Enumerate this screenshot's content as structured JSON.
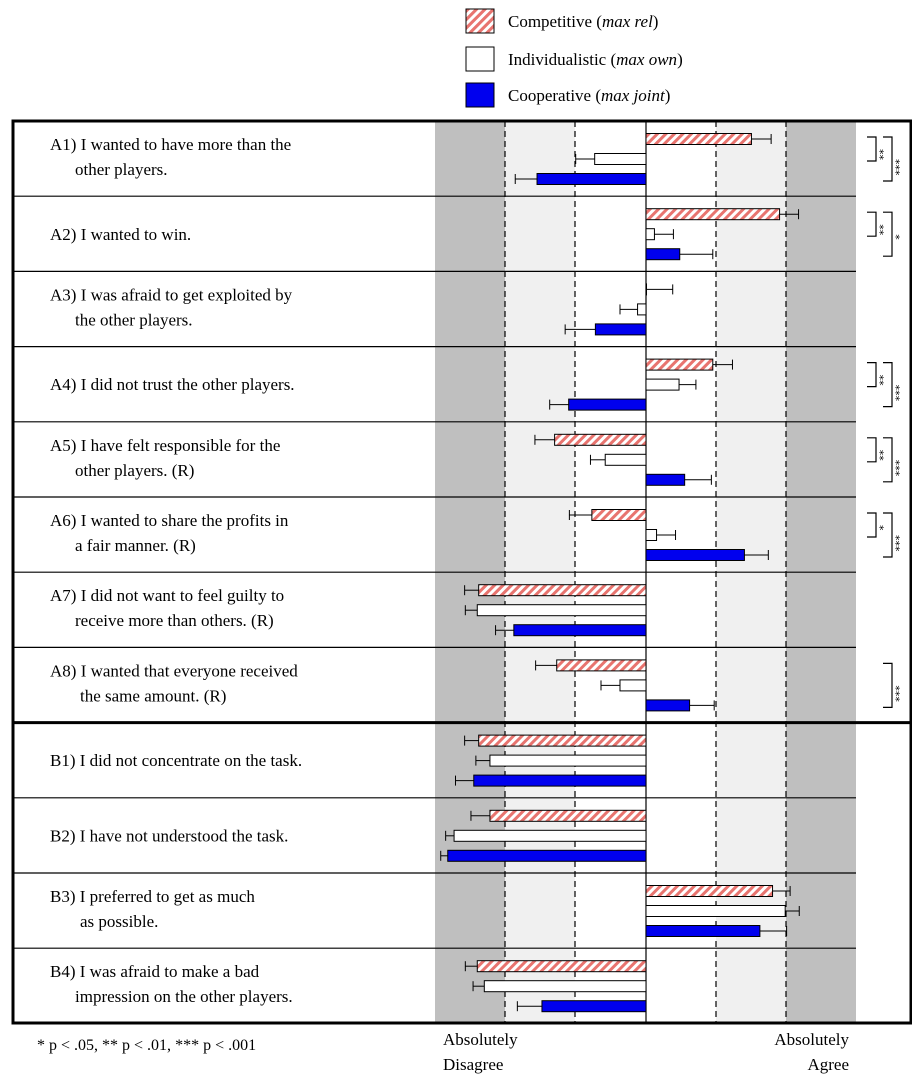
{
  "legend": {
    "competitive": {
      "label": "Competitive",
      "paren": "max rel"
    },
    "individualistic": {
      "label": "Individualistic",
      "paren": "max own"
    },
    "cooperative": {
      "label": "Cooperative",
      "paren": "max joint"
    }
  },
  "colors": {
    "competitive": "#e8746f",
    "individualistic": "#ffffff",
    "cooperative": "#0000ee",
    "outer_band": "#bfbfbf",
    "inner_band": "#f0f0f0"
  },
  "axis": {
    "left_label_line1": "Absolutely",
    "left_label_line2": "Disagree",
    "right_label_line1": "Absolutely",
    "right_label_line2": "Agree"
  },
  "footnote": {
    "p1": "* p < .05,",
    "p2": "** p < .01,",
    "p3": "*** p < .001"
  },
  "chart_data": {
    "type": "bar",
    "orientation": "horizontal",
    "xlim": [
      -3,
      3
    ],
    "reference_lines": [
      -2,
      -1,
      1,
      2
    ],
    "series": [
      {
        "key": "competitive",
        "name": "Competitive (max rel)"
      },
      {
        "key": "individualistic",
        "name": "Individualistic (max own)"
      },
      {
        "key": "cooperative",
        "name": "Cooperative (max joint)"
      }
    ],
    "items": [
      {
        "id": "A1",
        "lines": [
          "A1) I wanted to have more than the",
          "other players."
        ],
        "values": [
          1.5,
          -0.73,
          -1.55
        ],
        "errors": [
          0.28,
          0.27,
          0.31
        ],
        "sig": [
          [
            "**",
            1
          ],
          [
            "***",
            2
          ]
        ]
      },
      {
        "id": "A2",
        "lines": [
          "A2) I wanted to win."
        ],
        "values": [
          1.9,
          0.12,
          0.48
        ],
        "errors": [
          0.27,
          0.27,
          0.47
        ],
        "sig": [
          [
            "**",
            1
          ],
          [
            "*",
            2
          ]
        ]
      },
      {
        "id": "A3",
        "lines": [
          "A3) I was afraid to get exploited by",
          "the other players."
        ],
        "values": [
          0.0,
          -0.12,
          -0.72
        ],
        "errors": [
          0.38,
          0.25,
          0.43
        ],
        "sig": []
      },
      {
        "id": "A4",
        "lines": [
          "A4) I did not trust the other players."
        ],
        "values": [
          0.95,
          0.47,
          -1.1
        ],
        "errors": [
          0.28,
          0.24,
          0.27
        ],
        "sig": [
          [
            "**",
            1
          ],
          [
            "***",
            2
          ]
        ]
      },
      {
        "id": "A5",
        "lines": [
          "A5) I have felt responsible for the",
          "other players. (R)"
        ],
        "values": [
          -1.3,
          -0.58,
          0.55
        ],
        "errors": [
          0.28,
          0.21,
          0.38
        ],
        "sig": [
          [
            "**",
            1
          ],
          [
            "***",
            2
          ]
        ]
      },
      {
        "id": "A6",
        "lines": [
          "A6) I wanted to share the profits in",
          "a fair manner. (R)"
        ],
        "values": [
          -0.77,
          0.15,
          1.4
        ],
        "errors": [
          0.32,
          0.27,
          0.34
        ],
        "sig": [
          [
            "*",
            1
          ],
          [
            "***",
            2
          ]
        ]
      },
      {
        "id": "A7",
        "lines": [
          "A7) I did not want to feel guilty to",
          "receive more than others. (R)"
        ],
        "values": [
          -2.38,
          -2.4,
          -1.88
        ],
        "errors": [
          0.2,
          0.17,
          0.26
        ],
        "sig": []
      },
      {
        "id": "A8",
        "lines": [
          "A8) I wanted that everyone received",
          "the same amount. (R)"
        ],
        "values": [
          -1.27,
          -0.37,
          0.62
        ],
        "errors": [
          0.3,
          0.27,
          0.35
        ],
        "sig": [
          [
            "***",
            2
          ]
        ]
      },
      {
        "id": "B1",
        "lines": [
          "B1) I did not concentrate on the task."
        ],
        "values": [
          -2.38,
          -2.22,
          -2.45
        ],
        "errors": [
          0.2,
          0.2,
          0.26
        ],
        "sig": []
      },
      {
        "id": "B2",
        "lines": [
          "B2) I have not understood the task."
        ],
        "values": [
          -2.22,
          -2.73,
          -2.82
        ],
        "errors": [
          0.27,
          0.12,
          0.1
        ],
        "sig": []
      },
      {
        "id": "B3",
        "lines": [
          "B3) I preferred to get as much",
          "as possible."
        ],
        "values": [
          1.8,
          1.98,
          1.62
        ],
        "errors": [
          0.25,
          0.2,
          0.38
        ],
        "sig": []
      },
      {
        "id": "B4",
        "lines": [
          "B4) I was afraid to make a bad",
          "impression on the other players."
        ],
        "values": [
          -2.4,
          -2.3,
          -1.48
        ],
        "errors": [
          0.17,
          0.16,
          0.35
        ],
        "sig": []
      }
    ]
  }
}
